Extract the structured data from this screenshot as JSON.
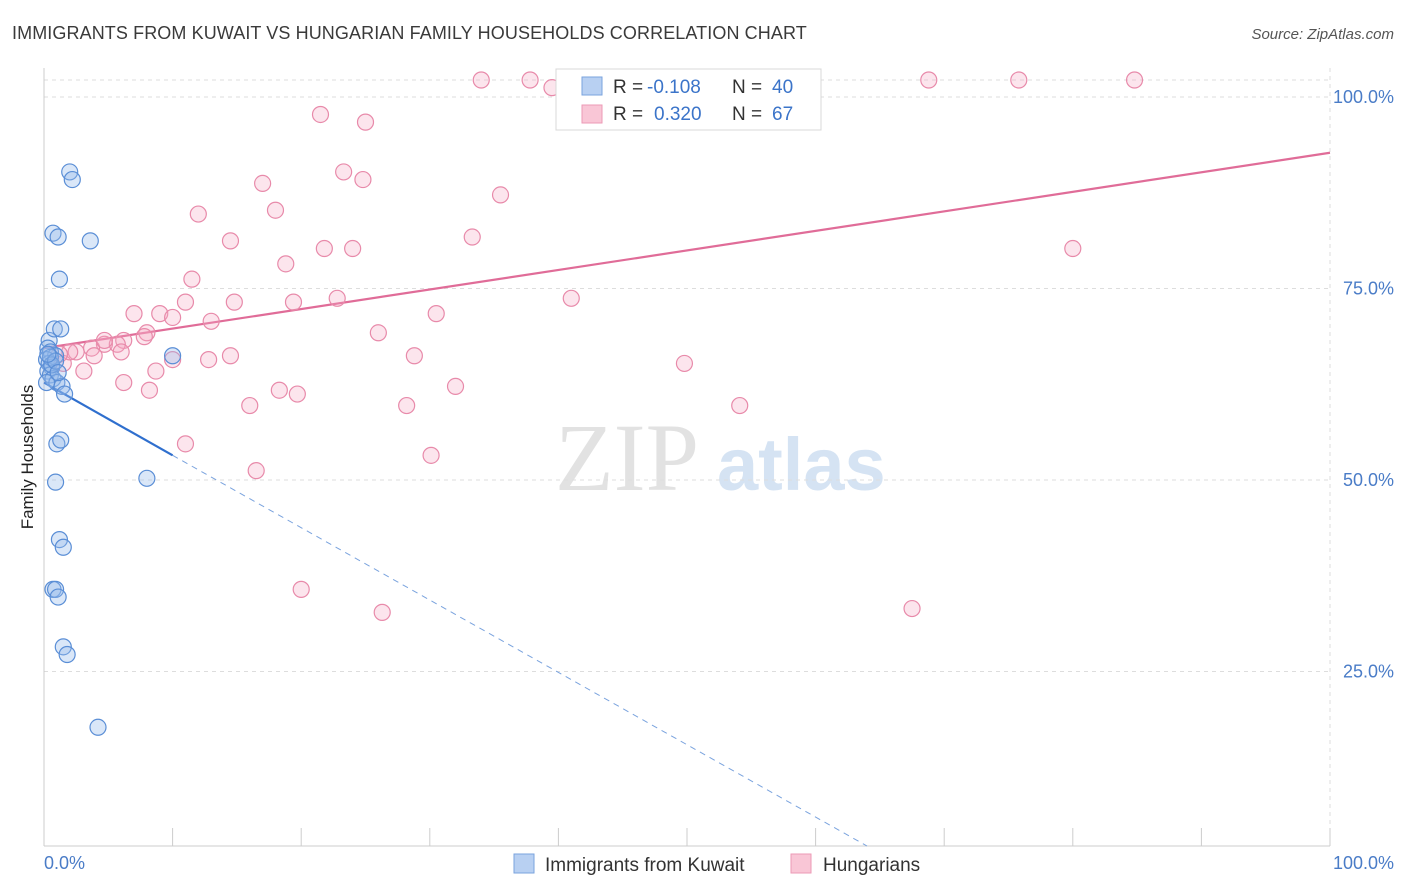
{
  "chart_data": {
    "type": "scatter",
    "title": "IMMIGRANTS FROM KUWAIT VS HUNGARIAN FAMILY HOUSEHOLDS CORRELATION CHART",
    "source": "Source: ZipAtlas.com",
    "ylabel": "Family Households",
    "xlim": [
      0,
      100
    ],
    "ylim": [
      0,
      100
    ],
    "x_ticks": [
      "0.0%",
      "100.0%"
    ],
    "y_ticks": [
      {
        "value": 100,
        "label": "100.0%"
      },
      {
        "value": 75,
        "label": "75.0%"
      },
      {
        "value": 50,
        "label": "50.0%"
      },
      {
        "value": 25,
        "label": "25.0%"
      }
    ],
    "watermark": {
      "zip": "ZIP",
      "atlas": "atlas"
    },
    "legend": [
      {
        "r_label": "R =",
        "r_value": "-0.108",
        "n_label": "N =",
        "n_value": "40"
      },
      {
        "r_label": "R =",
        "r_value": "0.320",
        "n_label": "N =",
        "n_value": "67"
      }
    ],
    "series": [
      {
        "name": "Immigrants from Kuwait",
        "color": "#5a8ed6",
        "trend": {
          "x0": 0,
          "y0": 60.5,
          "x1": 10,
          "y1": 51,
          "dash_to_x": 64,
          "dash_to_y": 0
        },
        "points": [
          [
            2,
            88
          ],
          [
            2.2,
            87
          ],
          [
            0.7,
            80
          ],
          [
            1.1,
            79.5
          ],
          [
            3.6,
            79
          ],
          [
            1.2,
            74
          ],
          [
            0.4,
            66
          ],
          [
            0.8,
            67.5
          ],
          [
            1.3,
            67.5
          ],
          [
            0.3,
            65
          ],
          [
            0.5,
            64.5
          ],
          [
            0.9,
            64
          ],
          [
            0.2,
            63.5
          ],
          [
            0.4,
            63
          ],
          [
            0.6,
            62.5
          ],
          [
            0.3,
            62
          ],
          [
            0.5,
            61.5
          ],
          [
            0.7,
            61
          ],
          [
            1.0,
            60.5
          ],
          [
            1.4,
            60
          ],
          [
            0.2,
            60.5
          ],
          [
            1.6,
            59
          ],
          [
            10,
            64
          ],
          [
            1.0,
            52.5
          ],
          [
            1.3,
            53
          ],
          [
            0.9,
            47.5
          ],
          [
            8,
            48
          ],
          [
            1.2,
            40
          ],
          [
            1.5,
            39
          ],
          [
            0.7,
            33.5
          ],
          [
            0.9,
            33.5
          ],
          [
            1.1,
            32.5
          ],
          [
            1.5,
            26
          ],
          [
            1.8,
            25
          ],
          [
            4.2,
            15.5
          ],
          [
            0.5,
            63.8
          ],
          [
            0.6,
            62.8
          ],
          [
            0.9,
            63.3
          ],
          [
            0.3,
            64.2
          ],
          [
            1.1,
            61.8
          ]
        ]
      },
      {
        "name": "Hungarians",
        "color": "#e07aa0",
        "trend": {
          "x0": 0,
          "y0": 65,
          "x1": 100,
          "y1": 90.5
        },
        "points": [
          [
            34,
            100
          ],
          [
            37.8,
            100
          ],
          [
            39.5,
            99
          ],
          [
            41,
            97.5
          ],
          [
            68.8,
            100
          ],
          [
            75.8,
            100
          ],
          [
            84.8,
            100
          ],
          [
            21.5,
            95.5
          ],
          [
            25,
            94.5
          ],
          [
            23.3,
            88
          ],
          [
            24.8,
            87
          ],
          [
            17,
            86.5
          ],
          [
            35.5,
            85
          ],
          [
            12,
            82.5
          ],
          [
            18,
            83
          ],
          [
            14.5,
            79
          ],
          [
            21.8,
            78
          ],
          [
            24,
            78
          ],
          [
            33.3,
            79.5
          ],
          [
            80,
            78
          ],
          [
            11.5,
            74
          ],
          [
            18.8,
            76
          ],
          [
            11,
            71
          ],
          [
            14.8,
            71
          ],
          [
            19.4,
            71
          ],
          [
            22.8,
            71.5
          ],
          [
            41,
            71.5
          ],
          [
            9,
            69.5
          ],
          [
            10,
            69
          ],
          [
            7,
            69.5
          ],
          [
            30.5,
            69.5
          ],
          [
            13,
            68.5
          ],
          [
            8,
            67
          ],
          [
            26,
            67
          ],
          [
            4.7,
            65.5
          ],
          [
            6.2,
            66
          ],
          [
            3.7,
            65
          ],
          [
            2.5,
            64.5
          ],
          [
            1.5,
            63
          ],
          [
            5.7,
            65.5
          ],
          [
            2.0,
            64.5
          ],
          [
            3.9,
            64
          ],
          [
            4.7,
            66
          ],
          [
            7.8,
            66.5
          ],
          [
            6,
            64.5
          ],
          [
            10,
            63.5
          ],
          [
            12.8,
            63.5
          ],
          [
            14.5,
            64
          ],
          [
            28.8,
            64
          ],
          [
            49.8,
            63
          ],
          [
            3.1,
            62
          ],
          [
            8.7,
            62
          ],
          [
            6.2,
            60.5
          ],
          [
            8.2,
            59.5
          ],
          [
            18.3,
            59.5
          ],
          [
            32,
            60
          ],
          [
            19.7,
            59
          ],
          [
            16,
            57.5
          ],
          [
            28.2,
            57.5
          ],
          [
            54.1,
            57.5
          ],
          [
            11,
            52.5
          ],
          [
            30.1,
            51
          ],
          [
            16.5,
            49
          ],
          [
            20,
            33.5
          ],
          [
            26.3,
            30.5
          ],
          [
            67.5,
            31
          ],
          [
            1.2,
            64.2
          ]
        ]
      }
    ]
  }
}
